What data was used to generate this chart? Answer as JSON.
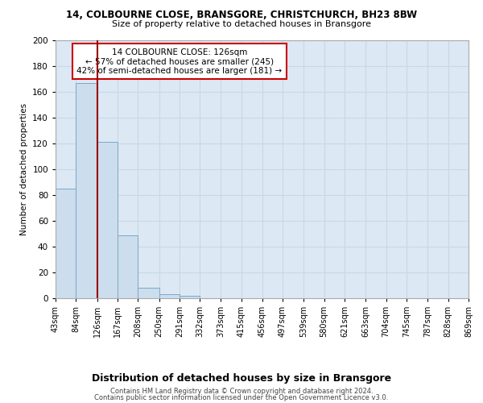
{
  "title": "14, COLBOURNE CLOSE, BRANSGORE, CHRISTCHURCH, BH23 8BW",
  "subtitle": "Size of property relative to detached houses in Bransgore",
  "xlabel": "Distribution of detached houses by size in Bransgore",
  "ylabel": "Number of detached properties",
  "bar_values": [
    85,
    167,
    121,
    49,
    8,
    3,
    2,
    0,
    0,
    0,
    0,
    0,
    0,
    0,
    0,
    0,
    0,
    0,
    0,
    0
  ],
  "bin_edges": [
    43,
    84,
    126,
    167,
    208,
    250,
    291,
    332,
    373,
    415,
    456,
    497,
    539,
    580,
    621,
    663,
    704,
    745,
    787,
    828,
    869
  ],
  "x_labels": [
    "43sqm",
    "84sqm",
    "126sqm",
    "167sqm",
    "208sqm",
    "250sqm",
    "291sqm",
    "332sqm",
    "373sqm",
    "415sqm",
    "456sqm",
    "497sqm",
    "539sqm",
    "580sqm",
    "621sqm",
    "663sqm",
    "704sqm",
    "745sqm",
    "787sqm",
    "828sqm",
    "869sqm"
  ],
  "bar_color": "#ccdded",
  "bar_edge_color": "#7aaac8",
  "vline_x": 126,
  "vline_color": "#990000",
  "annotation_lines": [
    "14 COLBOURNE CLOSE: 126sqm",
    "← 57% of detached houses are smaller (245)",
    "42% of semi-detached houses are larger (181) →"
  ],
  "annotation_box_color": "#cc0000",
  "ylim": [
    0,
    200
  ],
  "yticks": [
    0,
    20,
    40,
    60,
    80,
    100,
    120,
    140,
    160,
    180,
    200
  ],
  "grid_color": "#c8d8e8",
  "background_color": "#dce8f4",
  "title_fontsize": 8.5,
  "subtitle_fontsize": 8,
  "ylabel_fontsize": 7.5,
  "xlabel_fontsize": 9,
  "tick_fontsize": 7,
  "annotation_fontsize": 7.5,
  "footer_fontsize": 6,
  "footer_line1": "Contains HM Land Registry data © Crown copyright and database right 2024.",
  "footer_line2": "Contains public sector information licensed under the Open Government Licence v3.0."
}
